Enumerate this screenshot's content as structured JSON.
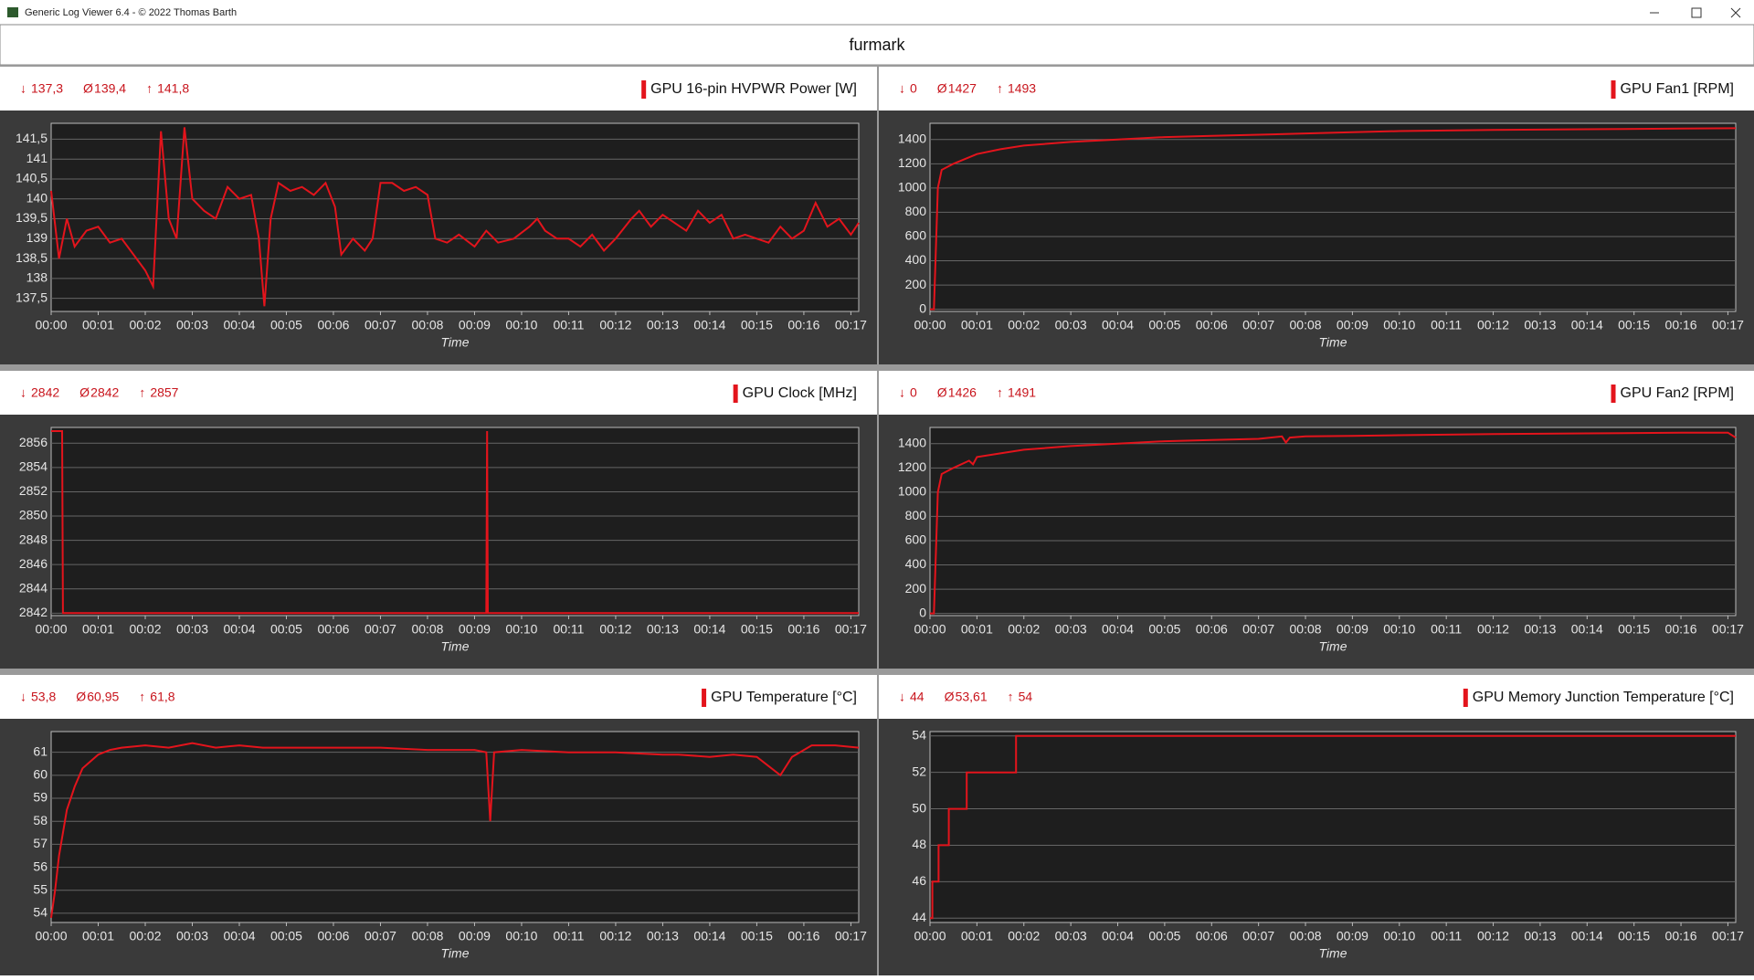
{
  "window": {
    "title": "Generic Log Viewer 6.4 - © 2022 Thomas Barth"
  },
  "header": {
    "title": "furmark"
  },
  "chart_data": [
    {
      "type": "line",
      "title": "GPU 16-pin HVPWR Power [W]",
      "stats": [
        {
          "symbol": "↓",
          "value": "137,3"
        },
        {
          "symbol": "Ø",
          "value": "139,4"
        },
        {
          "symbol": "↑",
          "value": "141,8"
        }
      ],
      "x_label": "Time",
      "x": [
        0,
        10,
        20,
        30,
        45,
        60,
        75,
        90,
        105,
        120,
        130,
        140,
        150,
        160,
        170,
        180,
        195,
        210,
        225,
        240,
        255,
        265,
        272,
        280,
        290,
        305,
        320,
        335,
        350,
        362,
        370,
        385,
        400,
        410,
        420,
        435,
        450,
        465,
        480,
        490,
        505,
        520,
        540,
        555,
        570,
        590,
        610,
        620,
        630,
        645,
        660,
        675,
        690,
        705,
        720,
        740,
        750,
        765,
        780,
        795,
        810,
        825,
        840,
        855,
        870,
        885,
        900,
        915,
        930,
        945,
        960,
        975,
        990,
        1005,
        1020,
        1030
      ],
      "series": [
        {
          "color": "#e3141c",
          "values": [
            140.2,
            138.5,
            139.5,
            138.8,
            139.2,
            139.3,
            138.9,
            139.0,
            138.6,
            138.2,
            137.8,
            141.7,
            139.5,
            139.0,
            141.8,
            140.0,
            139.7,
            139.5,
            140.3,
            140.0,
            140.1,
            139.0,
            137.3,
            139.5,
            140.4,
            140.2,
            140.3,
            140.1,
            140.4,
            139.8,
            138.6,
            139.0,
            138.7,
            139.0,
            140.4,
            140.4,
            140.2,
            140.3,
            140.1,
            139.0,
            138.9,
            139.1,
            138.8,
            139.2,
            138.9,
            139.0,
            139.3,
            139.5,
            139.2,
            139.0,
            139.0,
            138.8,
            139.1,
            138.7,
            139.0,
            139.5,
            139.7,
            139.3,
            139.6,
            139.4,
            139.2,
            139.7,
            139.4,
            139.6,
            139.0,
            139.1,
            139.0,
            138.9,
            139.3,
            139.0,
            139.2,
            139.9,
            139.3,
            139.5,
            139.1,
            139.4
          ]
        }
      ],
      "xlim": [
        0,
        1030
      ],
      "xticks": [
        {
          "value": 0,
          "label": "00:00"
        },
        {
          "value": 60,
          "label": "00:01"
        },
        {
          "value": 120,
          "label": "00:02"
        },
        {
          "value": 180,
          "label": "00:03"
        },
        {
          "value": 240,
          "label": "00:04"
        },
        {
          "value": 300,
          "label": "00:05"
        },
        {
          "value": 360,
          "label": "00:06"
        },
        {
          "value": 420,
          "label": "00:07"
        },
        {
          "value": 480,
          "label": "00:08"
        },
        {
          "value": 540,
          "label": "00:09"
        },
        {
          "value": 600,
          "label": "00:10"
        },
        {
          "value": 660,
          "label": "00:11"
        },
        {
          "value": 720,
          "label": "00:12"
        },
        {
          "value": 780,
          "label": "00:13"
        },
        {
          "value": 840,
          "label": "00:14"
        },
        {
          "value": 900,
          "label": "00:15"
        },
        {
          "value": 960,
          "label": "00:16"
        },
        {
          "value": 1020,
          "label": "00:17"
        }
      ],
      "ylim": [
        137.17,
        141.9
      ],
      "yticks": [
        {
          "value": 137.5,
          "label": "137,5"
        },
        138,
        {
          "value": 138.5,
          "label": "138,5"
        },
        139,
        {
          "value": 139.5,
          "label": "139,5"
        },
        140,
        {
          "value": 140.5,
          "label": "140,5"
        },
        141,
        {
          "value": 141.5,
          "label": "141,5"
        }
      ],
      "grid": true
    },
    {
      "type": "line",
      "title": "GPU Fan1 [RPM]",
      "stats": [
        {
          "symbol": "↓",
          "value": "0"
        },
        {
          "symbol": "Ø",
          "value": "1427"
        },
        {
          "symbol": "↑",
          "value": "1493"
        }
      ],
      "x_label": "Time",
      "x": [
        0,
        5,
        8,
        10,
        15,
        30,
        60,
        90,
        120,
        180,
        240,
        300,
        360,
        420,
        480,
        540,
        600,
        720,
        840,
        960,
        1030
      ],
      "series": [
        {
          "color": "#e3141c",
          "values": [
            0,
            0,
            600,
            1000,
            1150,
            1200,
            1280,
            1320,
            1350,
            1380,
            1400,
            1420,
            1430,
            1440,
            1450,
            1460,
            1470,
            1480,
            1485,
            1490,
            1493
          ]
        }
      ],
      "xlim": [
        0,
        1030
      ],
      "xticks": [
        {
          "value": 0,
          "label": "00:00"
        },
        {
          "value": 60,
          "label": "00:01"
        },
        {
          "value": 120,
          "label": "00:02"
        },
        {
          "value": 180,
          "label": "00:03"
        },
        {
          "value": 240,
          "label": "00:04"
        },
        {
          "value": 300,
          "label": "00:05"
        },
        {
          "value": 360,
          "label": "00:06"
        },
        {
          "value": 420,
          "label": "00:07"
        },
        {
          "value": 480,
          "label": "00:08"
        },
        {
          "value": 540,
          "label": "00:09"
        },
        {
          "value": 600,
          "label": "00:10"
        },
        {
          "value": 660,
          "label": "00:11"
        },
        {
          "value": 720,
          "label": "00:12"
        },
        {
          "value": 780,
          "label": "00:13"
        },
        {
          "value": 840,
          "label": "00:14"
        },
        {
          "value": 900,
          "label": "00:15"
        },
        {
          "value": 960,
          "label": "00:16"
        },
        {
          "value": 1020,
          "label": "00:17"
        }
      ],
      "ylim": [
        -18,
        1534
      ],
      "yticks": [
        0,
        200,
        400,
        600,
        800,
        1000,
        1200,
        1400
      ],
      "grid": true
    },
    {
      "type": "line",
      "title": "GPU Clock [MHz]",
      "stats": [
        {
          "symbol": "↓",
          "value": "2842"
        },
        {
          "symbol": "Ø",
          "value": "2842"
        },
        {
          "symbol": "↑",
          "value": "2857"
        }
      ],
      "x_label": "Time",
      "x": [
        0,
        14,
        15,
        555,
        556,
        557,
        1030
      ],
      "series": [
        {
          "color": "#e3141c",
          "values": [
            2857,
            2857,
            2842,
            2842,
            2857,
            2842,
            2842
          ]
        }
      ],
      "xlim": [
        0,
        1030
      ],
      "xticks": [
        {
          "value": 0,
          "label": "00:00"
        },
        {
          "value": 60,
          "label": "00:01"
        },
        {
          "value": 120,
          "label": "00:02"
        },
        {
          "value": 180,
          "label": "00:03"
        },
        {
          "value": 240,
          "label": "00:04"
        },
        {
          "value": 300,
          "label": "00:05"
        },
        {
          "value": 360,
          "label": "00:06"
        },
        {
          "value": 420,
          "label": "00:07"
        },
        {
          "value": 480,
          "label": "00:08"
        },
        {
          "value": 540,
          "label": "00:09"
        },
        {
          "value": 600,
          "label": "00:10"
        },
        {
          "value": 660,
          "label": "00:11"
        },
        {
          "value": 720,
          "label": "00:12"
        },
        {
          "value": 780,
          "label": "00:13"
        },
        {
          "value": 840,
          "label": "00:14"
        },
        {
          "value": 900,
          "label": "00:15"
        },
        {
          "value": 960,
          "label": "00:16"
        },
        {
          "value": 1020,
          "label": "00:17"
        }
      ],
      "ylim": [
        2841.8,
        2857.3
      ],
      "yticks": [
        2842,
        2844,
        2846,
        2848,
        2850,
        2852,
        2854,
        2856
      ],
      "grid": true
    },
    {
      "type": "line",
      "title": "GPU Fan2 [RPM]",
      "stats": [
        {
          "symbol": "↓",
          "value": "0"
        },
        {
          "symbol": "Ø",
          "value": "1426"
        },
        {
          "symbol": "↑",
          "value": "1491"
        }
      ],
      "x_label": "Time",
      "x": [
        0,
        5,
        8,
        10,
        15,
        30,
        50,
        55,
        60,
        90,
        120,
        180,
        240,
        300,
        360,
        420,
        450,
        455,
        460,
        480,
        540,
        600,
        720,
        840,
        960,
        1020,
        1030
      ],
      "series": [
        {
          "color": "#e3141c",
          "values": [
            0,
            0,
            600,
            1000,
            1150,
            1200,
            1260,
            1230,
            1290,
            1320,
            1350,
            1380,
            1400,
            1420,
            1430,
            1440,
            1460,
            1410,
            1450,
            1460,
            1465,
            1470,
            1480,
            1485,
            1490,
            1491,
            1450
          ]
        }
      ],
      "xlim": [
        0,
        1030
      ],
      "xticks": [
        {
          "value": 0,
          "label": "00:00"
        },
        {
          "value": 60,
          "label": "00:01"
        },
        {
          "value": 120,
          "label": "00:02"
        },
        {
          "value": 180,
          "label": "00:03"
        },
        {
          "value": 240,
          "label": "00:04"
        },
        {
          "value": 300,
          "label": "00:05"
        },
        {
          "value": 360,
          "label": "00:06"
        },
        {
          "value": 420,
          "label": "00:07"
        },
        {
          "value": 480,
          "label": "00:08"
        },
        {
          "value": 540,
          "label": "00:09"
        },
        {
          "value": 600,
          "label": "00:10"
        },
        {
          "value": 660,
          "label": "00:11"
        },
        {
          "value": 720,
          "label": "00:12"
        },
        {
          "value": 780,
          "label": "00:13"
        },
        {
          "value": 840,
          "label": "00:14"
        },
        {
          "value": 900,
          "label": "00:15"
        },
        {
          "value": 960,
          "label": "00:16"
        },
        {
          "value": 1020,
          "label": "00:17"
        }
      ],
      "ylim": [
        -18,
        1534
      ],
      "yticks": [
        0,
        200,
        400,
        600,
        800,
        1000,
        1200,
        1400
      ],
      "grid": true
    },
    {
      "type": "line",
      "title": "GPU Temperature [°C]",
      "stats": [
        {
          "symbol": "↓",
          "value": "53,8"
        },
        {
          "symbol": "Ø",
          "value": "60,95"
        },
        {
          "symbol": "↑",
          "value": "61,8"
        }
      ],
      "x_label": "Time",
      "x": [
        0,
        5,
        10,
        15,
        20,
        25,
        30,
        40,
        50,
        60,
        75,
        90,
        120,
        150,
        180,
        210,
        240,
        270,
        300,
        360,
        420,
        480,
        540,
        555,
        560,
        565,
        600,
        660,
        720,
        780,
        800,
        840,
        870,
        900,
        930,
        945,
        970,
        1000,
        1030
      ],
      "series": [
        {
          "color": "#e3141c",
          "values": [
            53.8,
            55,
            56.5,
            57.5,
            58.5,
            59.0,
            59.5,
            60.3,
            60.6,
            60.9,
            61.1,
            61.2,
            61.3,
            61.2,
            61.4,
            61.2,
            61.3,
            61.2,
            61.2,
            61.2,
            61.2,
            61.1,
            61.1,
            61.0,
            58.0,
            61.0,
            61.1,
            61.0,
            61.0,
            60.9,
            60.9,
            60.8,
            60.9,
            60.8,
            60.0,
            60.8,
            61.3,
            61.3,
            61.2
          ]
        }
      ],
      "xlim": [
        0,
        1030
      ],
      "xticks": [
        {
          "value": 0,
          "label": "00:00"
        },
        {
          "value": 60,
          "label": "00:01"
        },
        {
          "value": 120,
          "label": "00:02"
        },
        {
          "value": 180,
          "label": "00:03"
        },
        {
          "value": 240,
          "label": "00:04"
        },
        {
          "value": 300,
          "label": "00:05"
        },
        {
          "value": 360,
          "label": "00:06"
        },
        {
          "value": 420,
          "label": "00:07"
        },
        {
          "value": 480,
          "label": "00:08"
        },
        {
          "value": 540,
          "label": "00:09"
        },
        {
          "value": 600,
          "label": "00:10"
        },
        {
          "value": 660,
          "label": "00:11"
        },
        {
          "value": 720,
          "label": "00:12"
        },
        {
          "value": 780,
          "label": "00:13"
        },
        {
          "value": 840,
          "label": "00:14"
        },
        {
          "value": 900,
          "label": "00:15"
        },
        {
          "value": 960,
          "label": "00:16"
        },
        {
          "value": 1020,
          "label": "00:17"
        }
      ],
      "ylim": [
        53.6,
        61.9
      ],
      "yticks": [
        54,
        55,
        56,
        57,
        58,
        59,
        60,
        61
      ],
      "grid": true
    },
    {
      "type": "line",
      "title": "GPU Memory Junction Temperature [°C]",
      "stats": [
        {
          "symbol": "↓",
          "value": "44"
        },
        {
          "symbol": "Ø",
          "value": "53,61"
        },
        {
          "symbol": "↑",
          "value": "54"
        }
      ],
      "x_label": "Time",
      "x": [
        0,
        3,
        3,
        11,
        11,
        24,
        24,
        47,
        47,
        110,
        110,
        1030
      ],
      "series": [
        {
          "color": "#e3141c",
          "values": [
            44,
            44,
            46,
            46,
            48,
            48,
            50,
            50,
            52,
            52,
            54,
            54
          ]
        }
      ],
      "xlim": [
        0,
        1030
      ],
      "xticks": [
        {
          "value": 0,
          "label": "00:00"
        },
        {
          "value": 60,
          "label": "00:01"
        },
        {
          "value": 120,
          "label": "00:02"
        },
        {
          "value": 180,
          "label": "00:03"
        },
        {
          "value": 240,
          "label": "00:04"
        },
        {
          "value": 300,
          "label": "00:05"
        },
        {
          "value": 360,
          "label": "00:06"
        },
        {
          "value": 420,
          "label": "00:07"
        },
        {
          "value": 480,
          "label": "00:08"
        },
        {
          "value": 540,
          "label": "00:09"
        },
        {
          "value": 600,
          "label": "00:10"
        },
        {
          "value": 660,
          "label": "00:11"
        },
        {
          "value": 720,
          "label": "00:12"
        },
        {
          "value": 780,
          "label": "00:13"
        },
        {
          "value": 840,
          "label": "00:14"
        },
        {
          "value": 900,
          "label": "00:15"
        },
        {
          "value": 960,
          "label": "00:16"
        },
        {
          "value": 1020,
          "label": "00:17"
        }
      ],
      "ylim": [
        43.76,
        54.24
      ],
      "yticks": [
        44,
        46,
        48,
        50,
        52,
        54
      ],
      "grid": true
    }
  ]
}
